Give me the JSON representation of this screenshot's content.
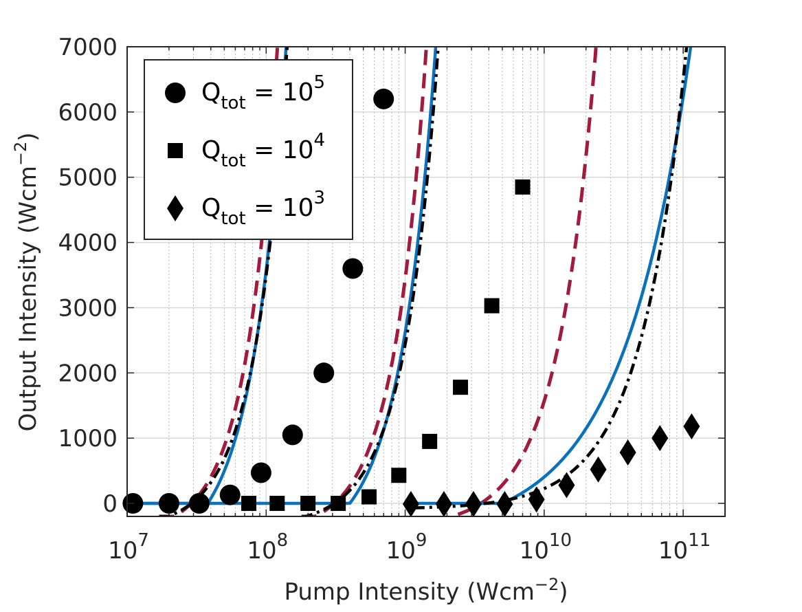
{
  "chart_data": {
    "type": "scatter",
    "title": "",
    "xlabel": "Pump Intensity (Wcm",
    "xlabel_sup": "−2",
    "xlabel_close": ")",
    "ylabel": "Output Intensity (Wcm",
    "ylabel_sup": "−2",
    "ylabel_close": ")",
    "xscale": "log",
    "xlim": [
      10000000,
      200000000000
    ],
    "ylim": [
      -200,
      7000
    ],
    "grid": true,
    "legend_position": "top-left",
    "x_ticks": [
      {
        "value": 10000000,
        "base": "10",
        "exp": "7"
      },
      {
        "value": 100000000,
        "base": "10",
        "exp": "8"
      },
      {
        "value": 1000000000,
        "base": "10",
        "exp": "9"
      },
      {
        "value": 10000000000,
        "base": "10",
        "exp": "10"
      },
      {
        "value": 100000000000,
        "base": "10",
        "exp": "11"
      }
    ],
    "y_ticks": [
      {
        "value": 0,
        "label": "0"
      },
      {
        "value": 1000,
        "label": "1000"
      },
      {
        "value": 2000,
        "label": "2000"
      },
      {
        "value": 3000,
        "label": "3000"
      },
      {
        "value": 4000,
        "label": "4000"
      },
      {
        "value": 5000,
        "label": "5000"
      },
      {
        "value": 6000,
        "label": "6000"
      },
      {
        "value": 7000,
        "label": "7000"
      }
    ],
    "legend": [
      {
        "marker": "circle",
        "q": "Q",
        "sub": "tot",
        "eq": " = 10",
        "sup": "5"
      },
      {
        "marker": "square",
        "q": "Q",
        "sub": "tot",
        "eq": " = 10",
        "sup": "4"
      },
      {
        "marker": "diamond",
        "q": "Q",
        "sub": "tot",
        "eq": " = 10",
        "sup": "3"
      }
    ],
    "series": [
      {
        "name": "Q_tot = 10^5",
        "marker": "circle",
        "x": [
          11000000,
          20000000,
          33000000,
          55000000,
          92000000,
          155000000,
          260000000,
          420000000,
          700000000
        ],
        "y": [
          0,
          0,
          0,
          130,
          470,
          1050,
          2000,
          3600,
          6200
        ]
      },
      {
        "name": "Q_tot = 10^4",
        "marker": "square",
        "x": [
          75000000,
          120000000,
          200000000,
          330000000,
          550000000,
          900000000,
          1500000000,
          2500000000,
          4200000000,
          7000000000
        ],
        "y": [
          0,
          0,
          0,
          0,
          100,
          430,
          950,
          1780,
          3030,
          4850
        ]
      },
      {
        "name": "Q_tot = 10^3",
        "marker": "diamond",
        "x": [
          1100000000,
          1900000000,
          3100000000,
          5200000000,
          8800000000,
          14500000000,
          24500000000,
          40000000000,
          68000000000,
          115000000000
        ],
        "y": [
          -10,
          -10,
          -10,
          -10,
          60,
          280,
          520,
          780,
          1000,
          1180
        ]
      }
    ],
    "curves": [
      {
        "name": "Q5 dashed red",
        "style": "dashed-red",
        "x0": 17000000,
        "x1": 680000000,
        "threshold": 29000000,
        "scale": 43000000,
        "p": 1.95,
        "ymin": -200
      },
      {
        "name": "Q5 solid blue",
        "style": "solid-blue",
        "x0": 10000000,
        "x1": 680000000,
        "threshold": 38000000,
        "scale": 43000000,
        "p": 1.75,
        "ymin": 0
      },
      {
        "name": "Q5 dashdot black",
        "style": "dashdot-black",
        "x0": 17000000,
        "x1": 640000000,
        "threshold": 29000000,
        "scale": 48000000,
        "p": 1.85,
        "ymin": -200
      },
      {
        "name": "Q4 dashed red",
        "style": "dashed-red",
        "x0": 180000000,
        "x1": 7300000000,
        "threshold": 310000000,
        "scale": 480000000,
        "p": 1.85,
        "ymin": -200
      },
      {
        "name": "Q4 solid blue",
        "style": "solid-blue",
        "x0": 10000000,
        "x1": 7100000000,
        "threshold": 400000000,
        "scale": 480000000,
        "p": 1.65,
        "ymin": 0
      },
      {
        "name": "Q4 dashdot black",
        "style": "dashdot-black",
        "x0": 180000000,
        "x1": 6900000000,
        "threshold": 310000000,
        "scale": 560000000,
        "p": 1.77,
        "ymin": -200
      },
      {
        "name": "Q3 dashed red",
        "style": "dashed-red",
        "x0": 2400000000,
        "x1": 90000000000,
        "threshold": 3500000000,
        "scale": 6500000000,
        "p": 1.55,
        "ymin": -200
      },
      {
        "name": "Q3 solid blue",
        "style": "solid-blue",
        "x0": 1150000000,
        "x1": 115000000000,
        "threshold": 5000000000,
        "scale": 11500000000,
        "p": 0.88,
        "ymin": 0
      },
      {
        "name": "Q3 dashdot black",
        "style": "dashdot-black",
        "x0": 1150000000,
        "x1": 115000000000,
        "threshold": 3800000000,
        "scale": 24000000000,
        "p": 1.32,
        "ymin": -200
      }
    ]
  }
}
